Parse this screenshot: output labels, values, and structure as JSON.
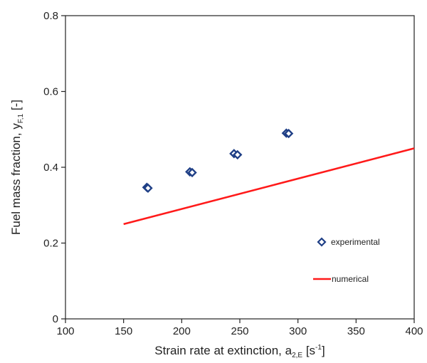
{
  "chart_data": {
    "type": "scatter",
    "xlabel": {
      "main": "Strain rate at extinction, a",
      "sub": "2,E",
      "unit_open": " [s",
      "unit_sup": "-1",
      "unit_close": "]"
    },
    "ylabel": {
      "main": "Fuel mass fraction, y",
      "sub": "F,1",
      "unit": " [-]"
    },
    "xlim": [
      100,
      400
    ],
    "ylim": [
      0,
      0.8
    ],
    "x_ticks": [
      "100",
      "150",
      "200",
      "250",
      "300",
      "350",
      "400"
    ],
    "y_ticks": [
      "0",
      "0.2",
      "0.4",
      "0.6",
      "0.8"
    ],
    "grid": false,
    "legend_position": "bottom-right",
    "series": [
      {
        "name": "experimental",
        "type": "scatter",
        "marker": "diamond",
        "color": "#1f3f86",
        "points": [
          {
            "x": 170,
            "y": 0.347
          },
          {
            "x": 171,
            "y": 0.345
          },
          {
            "x": 207,
            "y": 0.388
          },
          {
            "x": 209,
            "y": 0.386
          },
          {
            "x": 245,
            "y": 0.436
          },
          {
            "x": 248,
            "y": 0.433
          },
          {
            "x": 290,
            "y": 0.49
          },
          {
            "x": 292,
            "y": 0.489
          }
        ]
      },
      {
        "name": "numerical",
        "type": "line",
        "color": "#ff1a1a",
        "points": [
          {
            "x": 150,
            "y": 0.25
          },
          {
            "x": 400,
            "y": 0.45
          }
        ]
      }
    ]
  }
}
